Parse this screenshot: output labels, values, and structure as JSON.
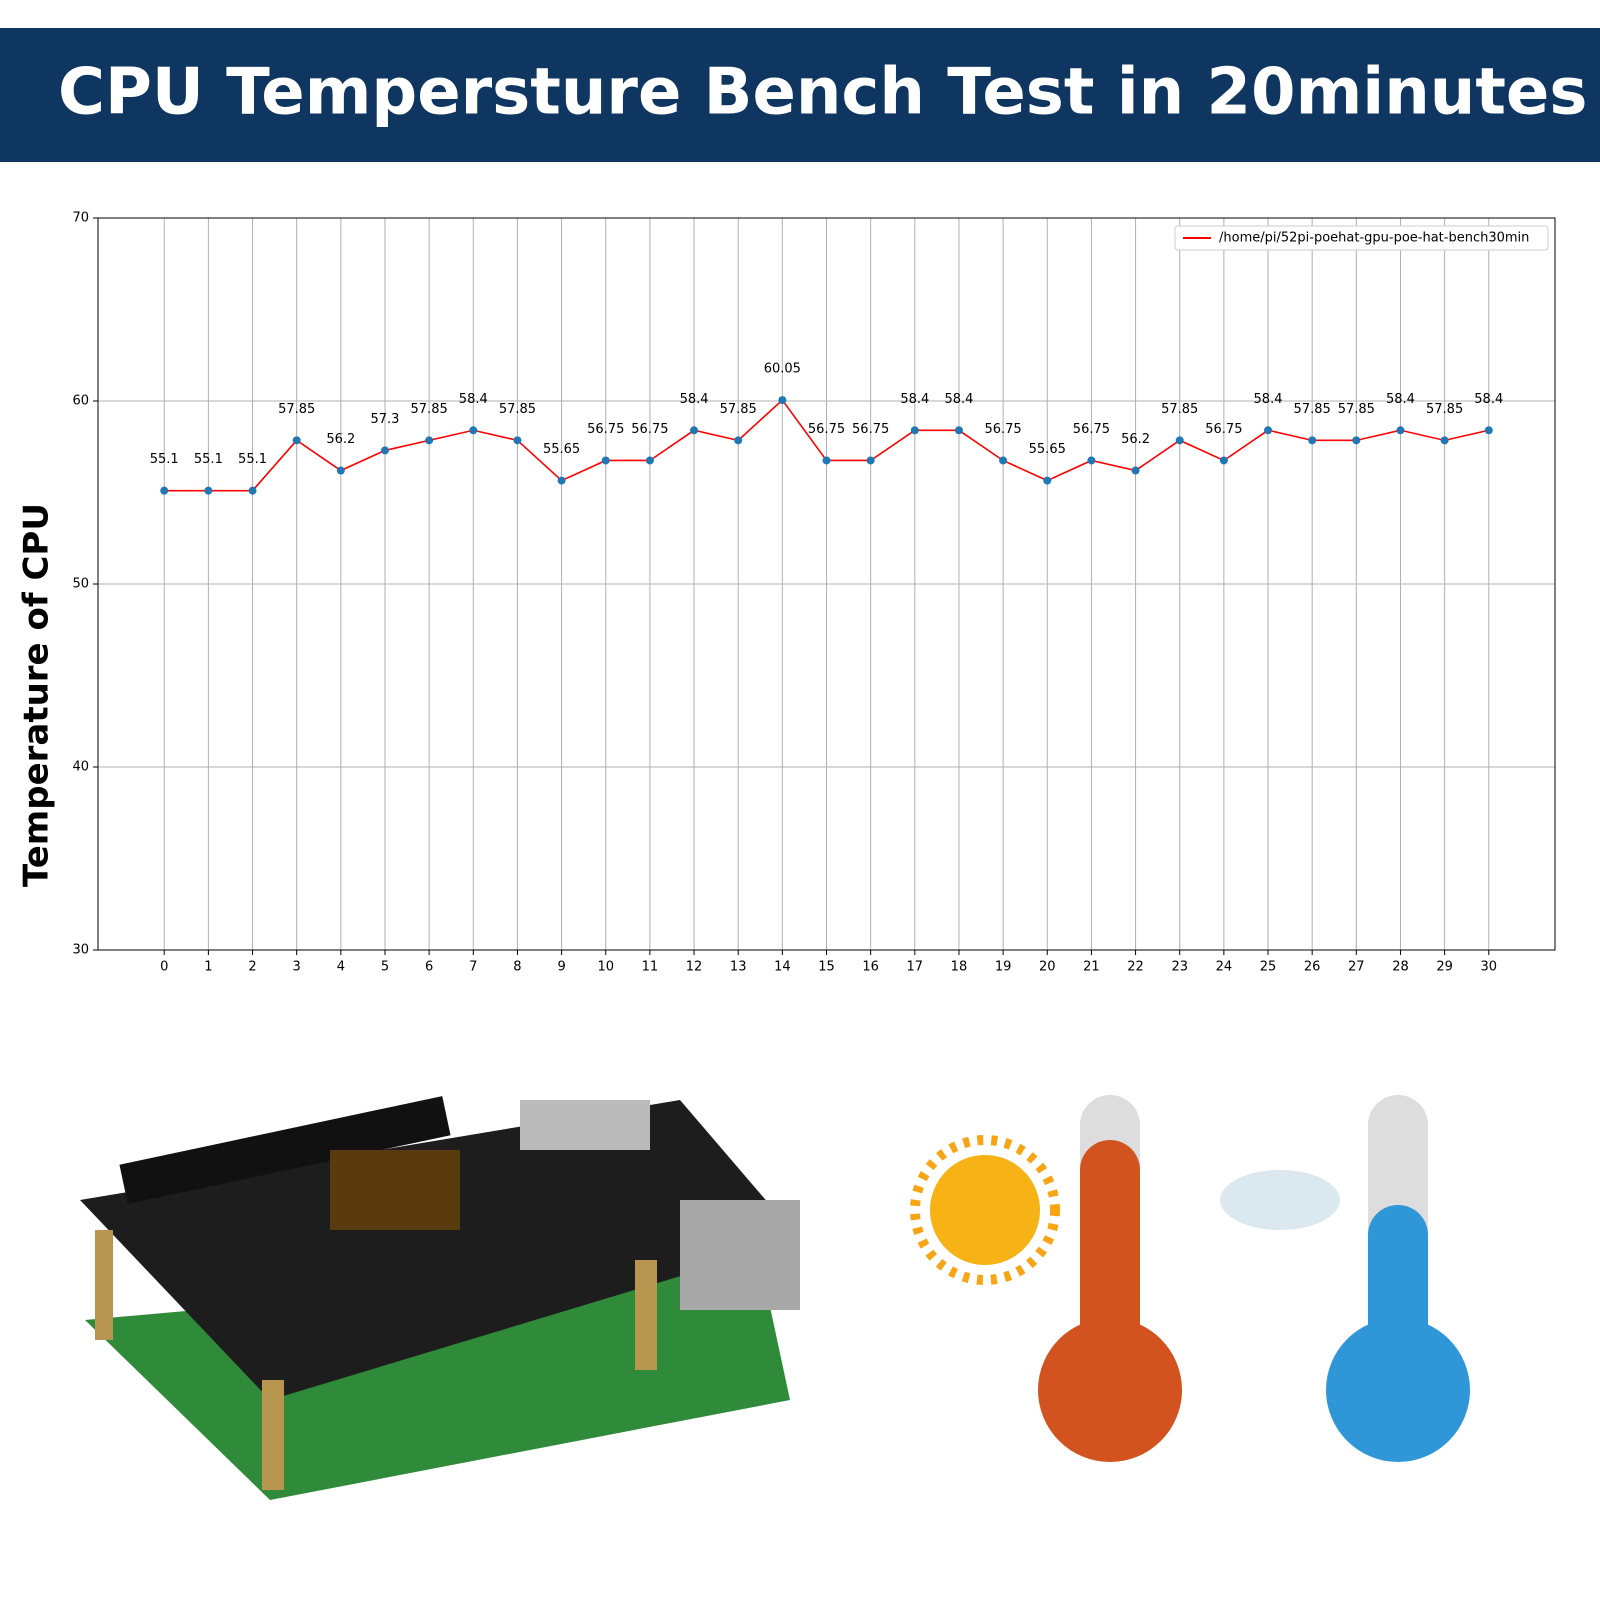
{
  "header": {
    "title": "CPU Tempersture Bench Test in 20minutes"
  },
  "chart_data": {
    "type": "line",
    "y_label": "Temperature of CPU",
    "x": [
      0,
      1,
      2,
      3,
      4,
      5,
      6,
      7,
      8,
      9,
      10,
      11,
      12,
      13,
      14,
      15,
      16,
      17,
      18,
      19,
      20,
      21,
      22,
      23,
      24,
      25,
      26,
      27,
      28,
      29,
      30
    ],
    "series": [
      {
        "name": "/home/pi/52pi-poehat-gpu-poe-hat-bench30min",
        "color": "#ff0000",
        "marker_color": "#1f77b4",
        "values": [
          55.1,
          55.1,
          55.1,
          57.85,
          56.2,
          57.3,
          57.85,
          58.4,
          57.85,
          55.65,
          56.75,
          56.75,
          58.4,
          57.85,
          60.05,
          56.75,
          56.75,
          58.4,
          58.4,
          56.75,
          55.65,
          56.75,
          56.2,
          57.85,
          56.75,
          58.4,
          57.85,
          57.85,
          58.4,
          57.85,
          58.4
        ]
      }
    ],
    "xlim": [
      -1.5,
      31.5
    ],
    "xticks": [
      0,
      1,
      2,
      3,
      4,
      5,
      6,
      7,
      8,
      9,
      10,
      11,
      12,
      13,
      14,
      15,
      16,
      17,
      18,
      19,
      20,
      21,
      22,
      23,
      24,
      25,
      26,
      27,
      28,
      29,
      30
    ],
    "ylim": [
      30,
      70
    ],
    "yticks": [
      30,
      40,
      50,
      60,
      70
    ],
    "grid": true,
    "data_labels": true,
    "legend": "upper right"
  }
}
